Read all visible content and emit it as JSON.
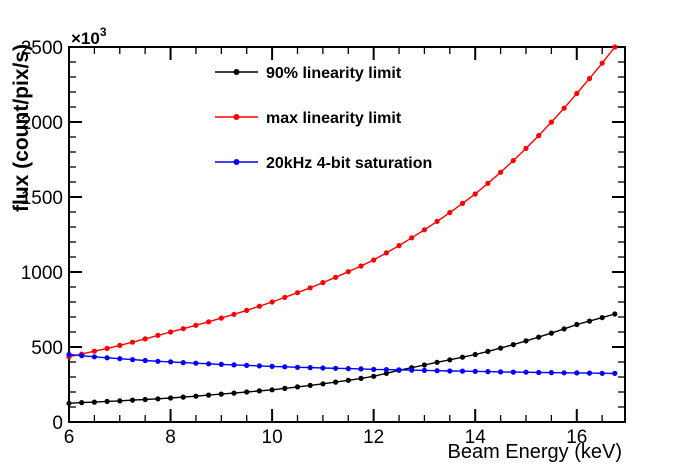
{
  "chart_data": {
    "type": "line",
    "title": "",
    "xlabel": "Beam Energy (keV)",
    "ylabel": "flux (count/pix/s)",
    "y_multiplier_base": "×10",
    "y_multiplier_exp": "3",
    "xlim": [
      6,
      16.95
    ],
    "ylim": [
      0,
      2500
    ],
    "x_major_ticks": [
      6,
      8,
      10,
      12,
      14,
      16
    ],
    "x_minor_step": 0.5,
    "y_major_ticks": [
      0,
      500,
      1000,
      1500,
      2000,
      2500
    ],
    "y_minor_step": 100,
    "grid": false,
    "legend_position": "top-left-inside",
    "axis_color": "#000000",
    "background_color": "#ffffff",
    "x": [
      6.0,
      6.25,
      6.5,
      6.75,
      7.0,
      7.25,
      7.5,
      7.75,
      8.0,
      8.25,
      8.5,
      8.75,
      9.0,
      9.25,
      9.5,
      9.75,
      10.0,
      10.25,
      10.5,
      10.75,
      11.0,
      11.25,
      11.5,
      11.75,
      12.0,
      12.25,
      12.5,
      12.75,
      13.0,
      13.25,
      13.5,
      13.75,
      14.0,
      14.25,
      14.5,
      14.75,
      15.0,
      15.25,
      15.5,
      15.75,
      16.0,
      16.25,
      16.5,
      16.75
    ],
    "series": [
      {
        "name": "90% linearity limit",
        "color": "#000000",
        "marker": "filled-circle",
        "values": [
          125,
          129,
          133,
          137,
          141,
          146,
          150,
          155,
          160,
          166,
          172,
          179,
          186,
          193,
          200,
          207,
          215,
          224,
          234,
          244,
          255,
          266,
          278,
          291,
          305,
          325,
          345,
          362,
          380,
          398,
          415,
          432,
          450,
          471,
          493,
          516,
          541,
          566,
          593,
          621,
          650,
          673,
          696,
          720
        ]
      },
      {
        "name": "max linearity limit",
        "color": "#ff0000",
        "marker": "filled-circle",
        "values": [
          435,
          453,
          472,
          491,
          511,
          532,
          554,
          577,
          600,
          622,
          645,
          668,
          693,
          718,
          744,
          772,
          800,
          831,
          862,
          895,
          929,
          965,
          1002,
          1040,
          1080,
          1127,
          1176,
          1228,
          1281,
          1337,
          1396,
          1457,
          1520,
          1591,
          1665,
          1743,
          1824,
          1909,
          1999,
          2092,
          2190,
          2289,
          2392,
          2500
        ]
      },
      {
        "name": "20kHz 4-bit saturation",
        "color": "#0000ff",
        "marker": "filled-circle",
        "values": [
          450,
          442,
          435,
          428,
          422,
          416,
          410,
          405,
          401,
          396,
          392,
          388,
          384,
          381,
          377,
          374,
          371,
          368,
          365,
          363,
          360,
          358,
          356,
          354,
          351,
          349,
          347,
          346,
          344,
          342,
          340,
          339,
          337,
          336,
          334,
          333,
          332,
          330,
          329,
          328,
          327,
          326,
          325,
          324
        ]
      }
    ]
  }
}
